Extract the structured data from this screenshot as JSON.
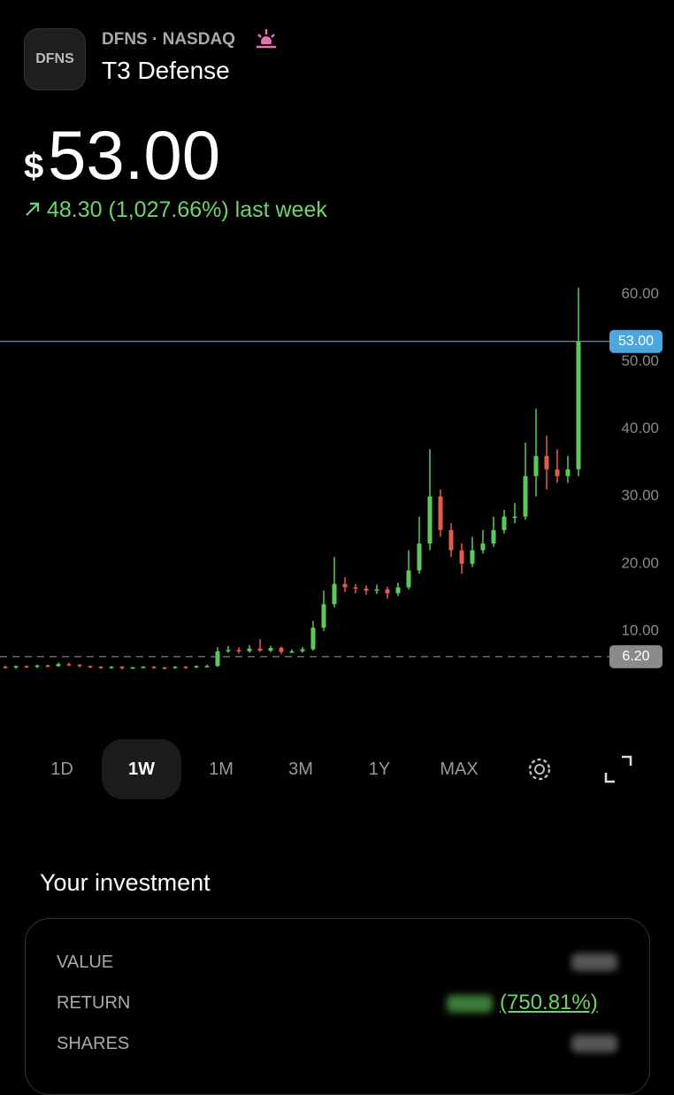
{
  "header": {
    "logo": "DFNS",
    "exchange": "DFNS · NASDAQ",
    "name": "T3 Defense",
    "currency": "$",
    "price": "53.00",
    "change": "48.30 (1,027.66%) last week"
  },
  "chart_data": {
    "type": "candlestick",
    "open": [
      4.7,
      4.6,
      4.8,
      4.7,
      4.9,
      4.8,
      5.1,
      5.0,
      4.8,
      4.7,
      4.6,
      4.7,
      4.5,
      4.6,
      4.7,
      4.6,
      4.5,
      4.7,
      4.6,
      4.8,
      4.8,
      7.0,
      7.2,
      7.0,
      7.4,
      7.1,
      7.5,
      6.9,
      7.0,
      7.3,
      10.5,
      14,
      17,
      16.5,
      16.3,
      16.0,
      16.2,
      15.6,
      16.5,
      19,
      23,
      30,
      25,
      22,
      20,
      22,
      23,
      25,
      27,
      27,
      33,
      36,
      34,
      33,
      34
    ],
    "high": [
      4.9,
      4.9,
      4.9,
      5.0,
      5.0,
      5.3,
      5.3,
      5.1,
      4.9,
      4.8,
      4.8,
      4.8,
      4.7,
      4.8,
      4.8,
      4.7,
      4.8,
      4.8,
      4.9,
      5.0,
      7.6,
      7.8,
      7.6,
      7.9,
      8.8,
      7.8,
      7.7,
      7.3,
      7.6,
      11.5,
      16,
      21,
      18,
      17,
      16.8,
      16.9,
      16.6,
      17.2,
      22,
      27,
      37,
      31,
      26,
      23,
      24,
      25,
      27,
      28,
      29,
      38,
      43,
      39,
      37,
      36,
      61
    ],
    "low": [
      4.4,
      4.4,
      4.5,
      4.5,
      4.6,
      4.7,
      4.8,
      4.6,
      4.5,
      4.4,
      4.4,
      4.3,
      4.4,
      4.5,
      4.4,
      4.3,
      4.4,
      4.4,
      4.5,
      4.6,
      4.7,
      6.8,
      6.7,
      6.8,
      6.9,
      6.9,
      6.6,
      6.7,
      6.8,
      7.1,
      10,
      13.5,
      15.8,
      15.6,
      15.4,
      15.5,
      14.8,
      15.2,
      16.2,
      18.5,
      22,
      24,
      21,
      18.5,
      19.5,
      21.5,
      22.5,
      24.5,
      26,
      26.5,
      30,
      31,
      32,
      32,
      33
    ],
    "close": [
      4.6,
      4.8,
      4.7,
      4.9,
      4.8,
      5.1,
      5.0,
      4.8,
      4.7,
      4.6,
      4.7,
      4.5,
      4.6,
      4.7,
      4.6,
      4.5,
      4.7,
      4.6,
      4.8,
      4.8,
      7.0,
      7.2,
      7.0,
      7.4,
      7.1,
      7.5,
      6.9,
      7.0,
      7.3,
      10.5,
      14,
      17,
      16.5,
      16.3,
      16.0,
      16.2,
      15.6,
      16.5,
      19,
      23,
      30,
      25,
      22,
      20,
      22,
      23,
      25,
      27,
      27,
      33,
      36,
      34,
      33,
      34,
      53
    ],
    "up_color": "#5cc85a",
    "down_color": "#e35b4c",
    "ylim": [
      0,
      64
    ],
    "yticks": [
      {
        "value": 10,
        "label": "10.00"
      },
      {
        "value": 20,
        "label": "20.00"
      },
      {
        "value": 30,
        "label": "30.00"
      },
      {
        "value": 40,
        "label": "40.00"
      },
      {
        "value": 50,
        "label": "50.00"
      },
      {
        "value": 60,
        "label": "60.00"
      }
    ],
    "price_lines": [
      {
        "value": 53,
        "label": "53.00",
        "color": "#4ea6e0",
        "dashed": false
      },
      {
        "value": 6.2,
        "label": "6.20",
        "color": "#8a8a8a",
        "dashed": true
      }
    ]
  },
  "ranges": {
    "options": [
      "1D",
      "1W",
      "1M",
      "3M",
      "1Y",
      "MAX"
    ],
    "selected": 1
  },
  "investment": {
    "title": "Your investment",
    "rows": [
      {
        "label": "VALUE"
      },
      {
        "label": "RETURN",
        "value": "(750.81%)"
      },
      {
        "label": "SHARES"
      }
    ]
  }
}
